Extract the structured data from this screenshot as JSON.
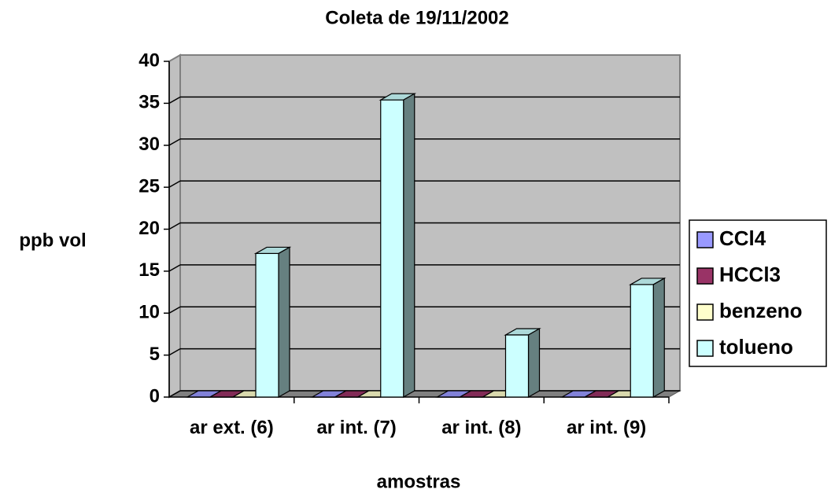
{
  "chart_data": {
    "type": "bar3d",
    "title": "Coleta de 19/11/2002",
    "x_label": "amostras",
    "y_label": "ppb vol",
    "categories": [
      "ar ext. (6)",
      "ar int. (7)",
      "ar int. (8)",
      "ar int. (9)"
    ],
    "series": [
      {
        "name": "CCl4",
        "color": "#9999ff",
        "values": [
          0,
          0,
          0,
          0
        ]
      },
      {
        "name": "HCCl3",
        "color": "#993366",
        "values": [
          0,
          0,
          0,
          0
        ]
      },
      {
        "name": "benzeno",
        "color": "#ffffcc",
        "values": [
          0,
          0,
          0,
          0
        ]
      },
      {
        "name": "tolueno",
        "color": "#ccffff",
        "values": [
          17.1,
          35.4,
          7.4,
          13.4
        ]
      }
    ],
    "ylim": [
      0,
      40
    ],
    "yticks": [
      0,
      5,
      10,
      15,
      20,
      25,
      30,
      35,
      40
    ],
    "grid": true,
    "legend": "right"
  }
}
